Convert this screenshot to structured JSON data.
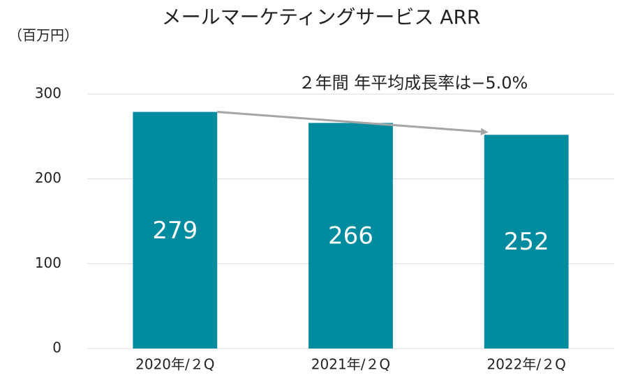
{
  "chart_data": {
    "type": "bar",
    "title": "メールマーケティングサービス ARR",
    "y_label": "（百万円）",
    "annotation": "２年間 年平均成長率は−5.0%",
    "categories": [
      "2020年/２Q",
      "2021年/２Q",
      "2022年/２Q"
    ],
    "values": [
      279,
      266,
      252
    ],
    "color": "#008c9e",
    "ylim": [
      0,
      300
    ],
    "yticks": [
      0,
      100,
      200,
      300
    ],
    "grid": true
  }
}
